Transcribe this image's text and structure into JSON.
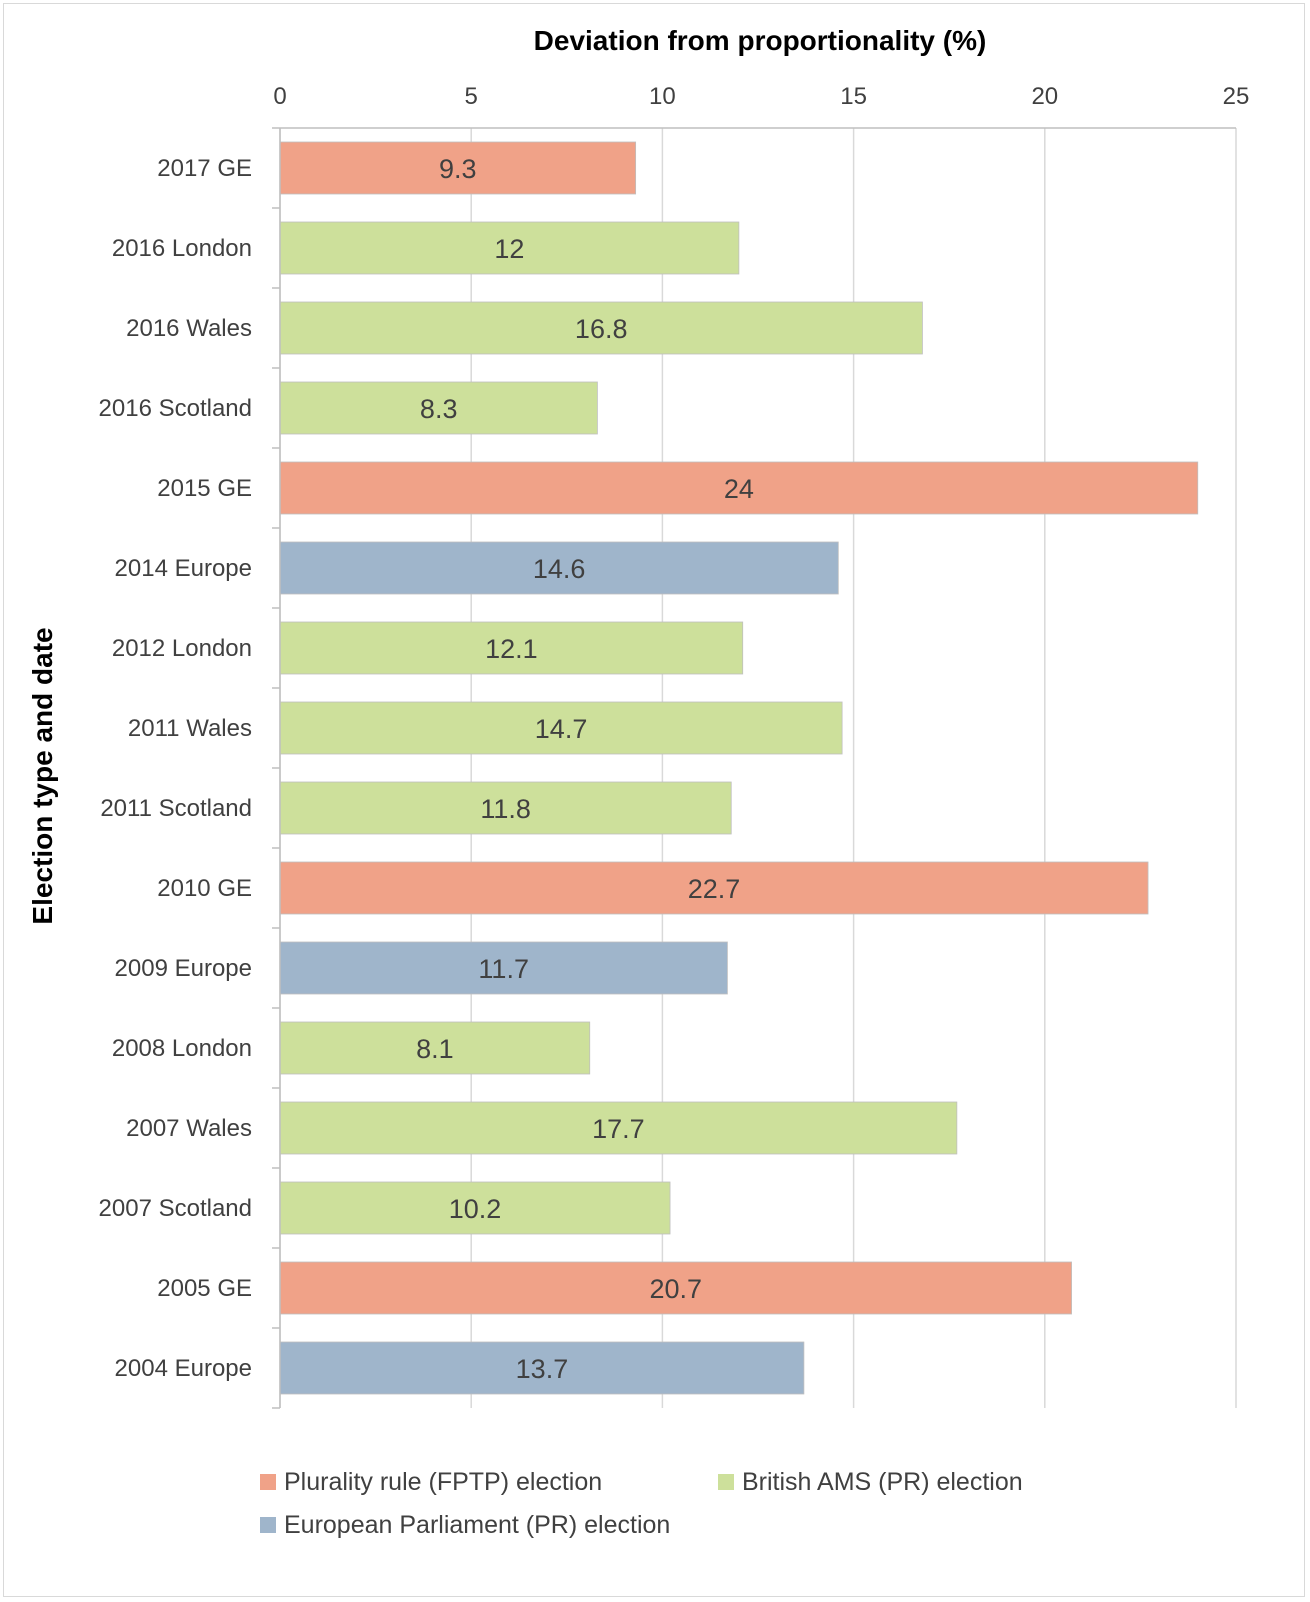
{
  "chart_data": {
    "type": "bar",
    "orientation": "horizontal",
    "xlabel": "Deviation from proportionality (%)",
    "ylabel": "Election type and date",
    "xlim": [
      0,
      25
    ],
    "xticks": [
      0,
      5,
      10,
      15,
      20,
      25
    ],
    "grid": true,
    "legend_position": "bottom",
    "series": [
      {
        "name": "Plurality rule (FPTP) election",
        "color": "#f0a288"
      },
      {
        "name": "British AMS (PR) election",
        "color": "#cde09b"
      },
      {
        "name": "European Parliament (PR) election",
        "color": "#9fb5cb"
      }
    ],
    "categories": [
      "2017 GE",
      "2016 London",
      "2016 Wales",
      "2016 Scotland",
      "2015 GE",
      "2014 Europe",
      "2012 London",
      "2011 Wales",
      "2011 Scotland",
      "2010 GE",
      "2009 Europe",
      "2008 London",
      "2007 Wales",
      "2007 Scotland",
      "2005 GE",
      "2004 Europe"
    ],
    "values": [
      9.3,
      12,
      16.8,
      8.3,
      24,
      14.6,
      12.1,
      14.7,
      11.8,
      22.7,
      11.7,
      8.1,
      17.7,
      10.2,
      20.7,
      13.7
    ],
    "value_labels": [
      "9.3",
      "12",
      "16.8",
      "8.3",
      "24",
      "14.6",
      "12.1",
      "14.7",
      "11.8",
      "22.7",
      "11.7",
      "8.1",
      "17.7",
      "10.2",
      "20.7",
      "13.7"
    ],
    "series_index": [
      0,
      1,
      1,
      1,
      0,
      2,
      1,
      1,
      1,
      0,
      2,
      1,
      1,
      1,
      0,
      2
    ]
  }
}
